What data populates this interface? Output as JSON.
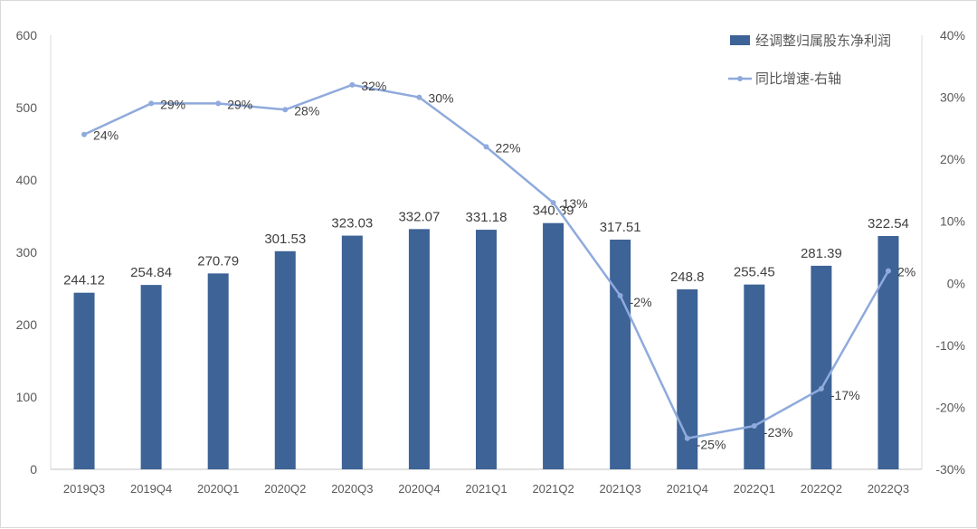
{
  "chart_data": {
    "type": "bar+line",
    "categories": [
      "2019Q3",
      "2019Q4",
      "2020Q1",
      "2020Q2",
      "2020Q3",
      "2020Q4",
      "2021Q1",
      "2021Q2",
      "2021Q3",
      "2021Q4",
      "2022Q1",
      "2022Q2",
      "2022Q3"
    ],
    "series": [
      {
        "name": "经调整归属股东净利润",
        "type": "bar",
        "axis": "left",
        "color": "#3d6397",
        "values": [
          244.12,
          254.84,
          270.79,
          301.53,
          323.03,
          332.07,
          331.18,
          340.39,
          317.51,
          248.8,
          255.45,
          281.39,
          322.54
        ],
        "labels": [
          "244.12",
          "254.84",
          "270.79",
          "301.53",
          "323.03",
          "332.07",
          "331.18",
          "340.39",
          "317.51",
          "248.8",
          "255.45",
          "281.39",
          "322.54"
        ]
      },
      {
        "name": "同比增速-右轴",
        "type": "line",
        "axis": "right",
        "color": "#8faadc",
        "values": [
          24,
          29,
          29,
          28,
          32,
          30,
          22,
          13,
          -2,
          -25,
          -23,
          -17,
          2
        ],
        "labels": [
          "24%",
          "29%",
          "29%",
          "28%",
          "32%",
          "30%",
          "22%",
          "13%",
          "-2%",
          "-25%",
          "-23%",
          "-17%",
          "2%"
        ]
      }
    ],
    "left_axis": {
      "min": 0,
      "max": 600,
      "ticks": [
        "0",
        "100",
        "200",
        "300",
        "400",
        "500",
        "600"
      ]
    },
    "right_axis": {
      "min": -30,
      "max": 40,
      "ticks": [
        "-30%",
        "-20%",
        "-10%",
        "0%",
        "10%",
        "20%",
        "30%",
        "40%"
      ]
    },
    "legend": [
      "经调整归属股东净利润",
      "同比增速-右轴"
    ],
    "legend_position": "top-right",
    "grid": false
  }
}
